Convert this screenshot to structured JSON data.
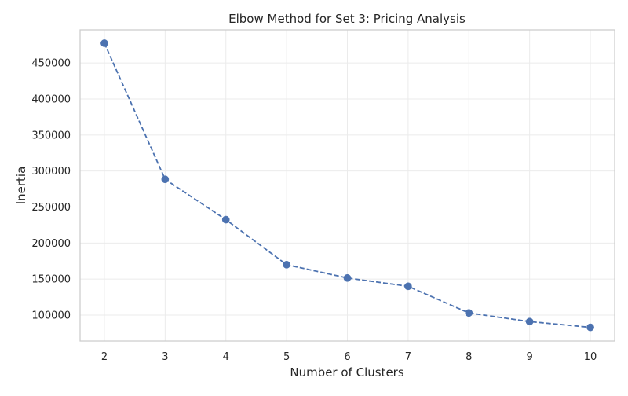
{
  "chart_data": {
    "type": "line",
    "title": "Elbow Method for Set 3: Pricing Analysis",
    "xlabel": "Number of Clusters",
    "ylabel": "Inertia",
    "x": [
      2,
      3,
      4,
      5,
      6,
      7,
      8,
      9,
      10
    ],
    "series": [
      {
        "values": [
          477500,
          288500,
          232500,
          170000,
          151500,
          140000,
          103000,
          91000,
          83000
        ],
        "color": "#4c72b0",
        "line_style": "dashed",
        "marker": "circle"
      }
    ],
    "xlim": [
      1.6,
      10.4
    ],
    "ylim": [
      64000,
      496000
    ],
    "xticks": [
      2,
      3,
      4,
      5,
      6,
      7,
      8,
      9,
      10
    ],
    "yticks": [
      100000,
      150000,
      200000,
      250000,
      300000,
      350000,
      400000,
      450000
    ],
    "grid": true,
    "legend": false
  }
}
